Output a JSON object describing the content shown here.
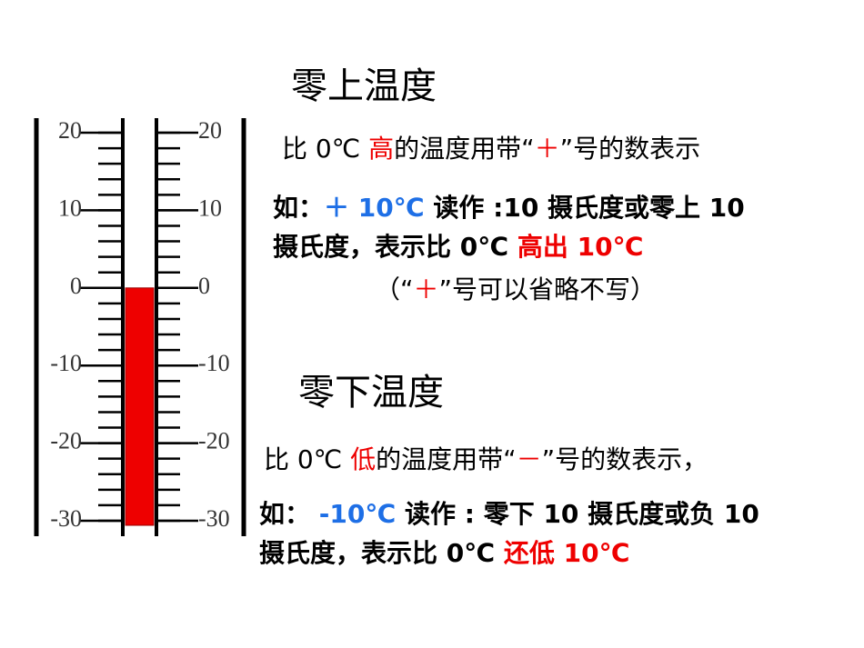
{
  "thermometer": {
    "range": [
      -30,
      20
    ],
    "labels": [
      20,
      10,
      0,
      -10,
      -20,
      -30
    ],
    "minor_step": 2,
    "reading": 0
  },
  "sections": [
    {
      "title": "零上温度",
      "lines": [
        [
          "比 0℃ ",
          "高",
          "的温度用带“",
          "＋",
          "”号的数表示"
        ],
        [
          "如：",
          "＋ 10℃",
          " 读作 :10 摄氏度或零上 10"
        ],
        [
          "摄氏度，表示比 0℃ ",
          "高出 10℃"
        ],
        [
          "（“",
          "＋",
          "”号可以省略不写）"
        ]
      ]
    },
    {
      "title": "零下温度",
      "lines": [
        [
          "比 0℃ ",
          "低",
          "的温度用带“",
          "－",
          "”号的数表示，"
        ],
        [
          "如： ",
          "-10℃",
          " 读作 : 零下 10 摄氏度或负 10"
        ],
        [
          "摄氏度，表示比 0℃ ",
          "还低 10℃"
        ]
      ]
    }
  ]
}
